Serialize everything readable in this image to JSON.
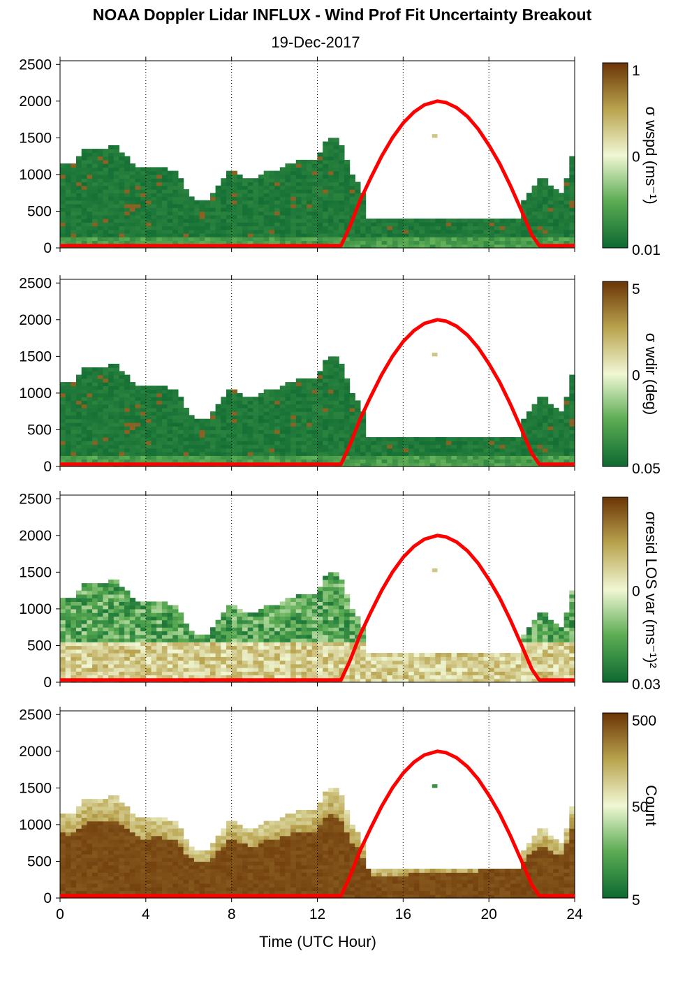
{
  "title": "NOAA Doppler Lidar INFLUX - Wind Prof Fit Uncertainty Breakout",
  "subtitle": "19-Dec-2017",
  "chart_data": {
    "type": "heatmap",
    "xlabel": "Time (UTC Hour)",
    "xlim": [
      0,
      24
    ],
    "x_ticks": [
      0,
      4,
      8,
      12,
      16,
      20,
      24
    ],
    "x_tick_labels": [
      "0",
      "4",
      "8",
      "12",
      "16",
      "20",
      "24"
    ],
    "ylim": [
      0,
      2550
    ],
    "y_ticks": [
      0,
      500,
      1000,
      1500,
      2000,
      2500
    ],
    "y_tick_labels": [
      "0",
      "500",
      "1000",
      "1500",
      "2000",
      "2500"
    ],
    "grid": "dotted vertical lines at x ticks",
    "colors": {
      "low": "#0e6a32",
      "mid": "#f0f7d4",
      "high": "#6b3406",
      "overlay": "#ff0000"
    },
    "data_ceiling": {
      "description": "top of data coverage (m) per hour",
      "hours": [
        0,
        0.5,
        1,
        1.5,
        2,
        2.5,
        3,
        3.5,
        4,
        4.5,
        5,
        5.5,
        6,
        6.5,
        7,
        7.5,
        8,
        8.5,
        9,
        9.5,
        10,
        10.5,
        11,
        11.5,
        12,
        12.5,
        13,
        13.5,
        14,
        14.5,
        15,
        15.5,
        16,
        16.5,
        17,
        17.5,
        18,
        18.5,
        19,
        19.5,
        20,
        20.5,
        21,
        21.5,
        22,
        22.5,
        23,
        23.5,
        23.8
      ],
      "values": [
        1150,
        1100,
        1300,
        1350,
        1330,
        1390,
        1250,
        1100,
        1050,
        1080,
        1050,
        1000,
        720,
        620,
        650,
        880,
        1050,
        960,
        900,
        1000,
        1030,
        1100,
        1150,
        1180,
        1200,
        1480,
        1460,
        1050,
        820,
        400,
        380,
        370,
        380,
        410,
        430,
        440,
        430,
        420,
        440,
        460,
        500,
        510,
        520,
        600,
        800,
        950,
        800,
        720,
        1250
      ]
    },
    "panels": [
      {
        "colorbar_label": "σ wspd (ms⁻¹)",
        "colorbar_ticks": [
          "1",
          "0",
          "0.01"
        ],
        "metric": "sigma_wspd"
      },
      {
        "colorbar_label": "σ wdir (deg)",
        "colorbar_ticks": [
          "5",
          "0",
          "0.05"
        ],
        "metric": "sigma_wdir"
      },
      {
        "colorbar_label": "σresid LOS var (ms⁻¹)²",
        "colorbar_ticks": [
          "",
          "0",
          "0.03"
        ],
        "metric": "resid_los_var"
      },
      {
        "colorbar_label": "Count",
        "colorbar_ticks": [
          "500",
          "50",
          "5"
        ],
        "metric": "count"
      }
    ],
    "overlay": {
      "type": "line",
      "color": "#ff0000",
      "description": "solar elevation curve",
      "x": [
        0,
        13.1,
        13.5,
        14,
        14.5,
        15,
        15.5,
        16,
        16.5,
        17,
        17.6,
        18,
        18.5,
        19,
        19.5,
        20,
        20.5,
        21,
        21.5,
        22,
        22.35,
        24
      ],
      "y": [
        30,
        30,
        280,
        650,
        960,
        1250,
        1500,
        1700,
        1850,
        1950,
        2000,
        1980,
        1910,
        1790,
        1620,
        1400,
        1150,
        850,
        520,
        180,
        30,
        30
      ]
    }
  }
}
